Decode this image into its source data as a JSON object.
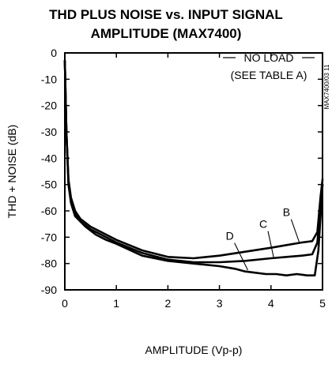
{
  "chart_data": {
    "type": "line",
    "title_line1": "THD PLUS NOISE vs. INPUT SIGNAL",
    "title_line2": "AMPLITUDE (MAX7400)",
    "xlabel": "AMPLITUDE (Vp-p)",
    "ylabel": "THD + NOISE (dB)",
    "xlim": [
      0,
      5
    ],
    "ylim": [
      -90,
      0
    ],
    "x_ticks": [
      "0",
      "1",
      "2",
      "3",
      "4",
      "5"
    ],
    "y_ticks": [
      "0",
      "-10",
      "-20",
      "-30",
      "-40",
      "-50",
      "-60",
      "-70",
      "-80",
      "-90"
    ],
    "grid": false,
    "legend_box": {
      "line1": "NO LOAD",
      "line2": "(SEE TABLE A)"
    },
    "figure_code": "MAX7400/03 11",
    "series": [
      {
        "name": "B",
        "x": [
          0.0,
          0.03,
          0.07,
          0.12,
          0.2,
          0.3,
          0.5,
          0.8,
          1.0,
          1.5,
          2.0,
          2.5,
          3.0,
          3.5,
          4.0,
          4.3,
          4.6,
          4.8,
          4.9,
          4.96,
          5.0
        ],
        "y": [
          -3,
          -30,
          -48,
          -55,
          -60,
          -63,
          -66,
          -69,
          -71,
          -75,
          -77.5,
          -78,
          -77,
          -75.5,
          -74,
          -73,
          -72,
          -71.5,
          -68,
          -55,
          -48
        ]
      },
      {
        "name": "C",
        "x": [
          0.0,
          0.03,
          0.07,
          0.12,
          0.2,
          0.3,
          0.5,
          0.8,
          1.0,
          1.5,
          2.0,
          2.5,
          3.0,
          3.5,
          4.0,
          4.3,
          4.6,
          4.8,
          4.9,
          4.96,
          5.0
        ],
        "y": [
          -3,
          -30,
          -49,
          -56,
          -61,
          -64,
          -67,
          -70,
          -72,
          -76,
          -78.5,
          -79.5,
          -79.5,
          -79,
          -78,
          -77.5,
          -77,
          -76.5,
          -72,
          -58,
          -50
        ]
      },
      {
        "name": "D",
        "x": [
          0.0,
          0.03,
          0.07,
          0.12,
          0.2,
          0.3,
          0.4,
          0.6,
          0.8,
          1.0,
          1.5,
          2.0,
          2.5,
          3.0,
          3.3,
          3.5,
          3.7,
          3.9,
          4.1,
          4.3,
          4.5,
          4.7,
          4.85,
          4.92,
          5.0
        ],
        "y": [
          -3,
          -30,
          -50,
          -57,
          -62,
          -64,
          -66,
          -69,
          -71,
          -72.5,
          -77,
          -79,
          -80,
          -81,
          -82,
          -83,
          -83.5,
          -84,
          -84,
          -84.5,
          -84,
          -84.5,
          -84.5,
          -75,
          -50
        ]
      }
    ],
    "curve_labels": [
      {
        "text": "B",
        "x": 4.3,
        "y": -62
      },
      {
        "text": "C",
        "x": 3.85,
        "y": -66.5
      },
      {
        "text": "D",
        "x": 3.2,
        "y": -71
      }
    ]
  }
}
